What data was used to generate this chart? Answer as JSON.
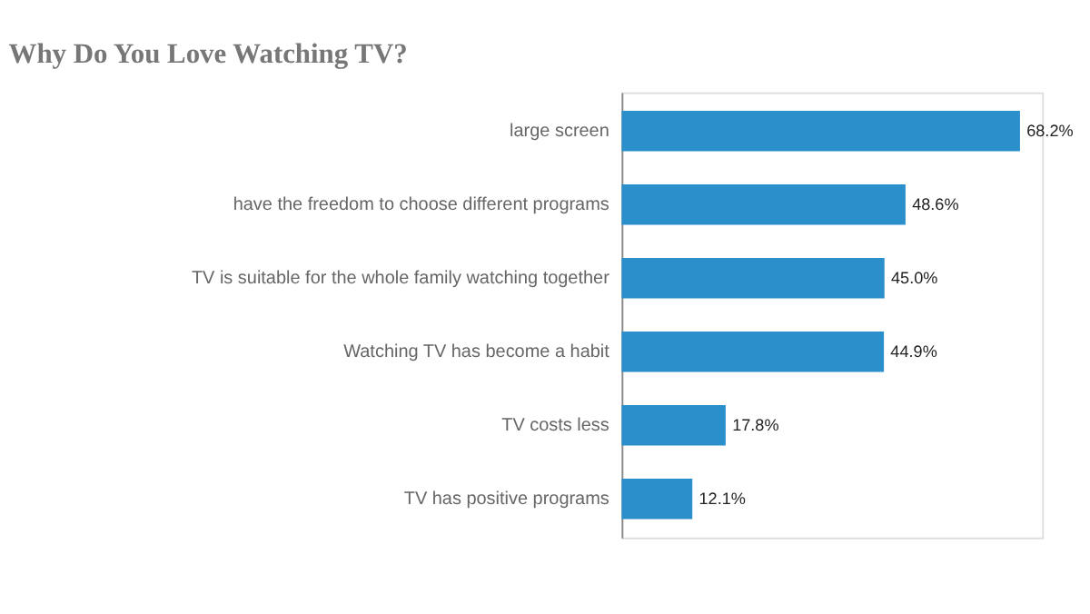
{
  "chart_data": {
    "type": "bar",
    "orientation": "horizontal",
    "title": "Why Do You Love Watching TV?",
    "categories": [
      "large screen",
      "have the freedom to choose different programs",
      "TV is suitable for the whole family watching together",
      "Watching TV has become a habit",
      "TV costs less",
      "TV has positive programs"
    ],
    "values": [
      68.2,
      48.6,
      45.0,
      44.9,
      17.8,
      12.1
    ],
    "value_labels": [
      "68.2%",
      "48.6%",
      "45.0%",
      "44.9%",
      "17.8%",
      "12.1%"
    ],
    "color": "#2b8fcc",
    "xlim": [
      0,
      72
    ],
    "tick_labels": "y"
  }
}
